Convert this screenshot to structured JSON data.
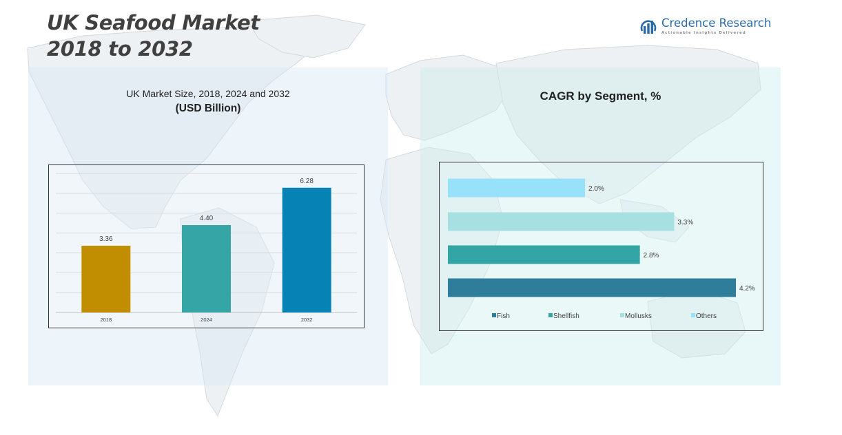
{
  "title_line1": "UK Seafood Market",
  "title_line2": "2018 to 2032",
  "logo": {
    "name": "Credence Research",
    "tagline": "Actionable Insights Delivered",
    "icon": "bar-chart-arc-icon"
  },
  "left_panel": {
    "heading": "UK Market Size, 2018, 2024 and 2032",
    "subheading": "(USD Billion)"
  },
  "right_panel": {
    "heading": "CAGR by Segment, %"
  },
  "colors": {
    "bar_2018": "#c08e00",
    "bar_2024": "#35a5a6",
    "bar_2032": "#0683b4",
    "fish": "#2e7d9b",
    "shellfish": "#33a5a5",
    "mollusks": "#a7e0e0",
    "others": "#97e1fb"
  },
  "chart_data": [
    {
      "type": "bar",
      "categories": [
        "2018",
        "2024",
        "2032"
      ],
      "values": [
        3.36,
        4.4,
        6.28
      ],
      "data_labels": [
        "3.36",
        "4.40",
        "6.28"
      ],
      "title": "UK Market Size, 2018, 2024 and 2032",
      "subtitle": "(USD Billion)",
      "ylim": [
        0,
        7
      ],
      "grid": true
    },
    {
      "type": "bar",
      "orientation": "horizontal",
      "series": [
        {
          "name": "Fish",
          "value": 4.2,
          "label": "4.2%"
        },
        {
          "name": "Shellfish",
          "value": 2.8,
          "label": "2.8%"
        },
        {
          "name": "Mollusks",
          "value": 3.3,
          "label": "3.3%"
        },
        {
          "name": "Others",
          "value": 2.0,
          "label": "2.0%"
        }
      ],
      "title": "CAGR by Segment, %",
      "xlim": [
        0,
        4.2
      ],
      "legend_position": "bottom",
      "grid": false
    }
  ]
}
